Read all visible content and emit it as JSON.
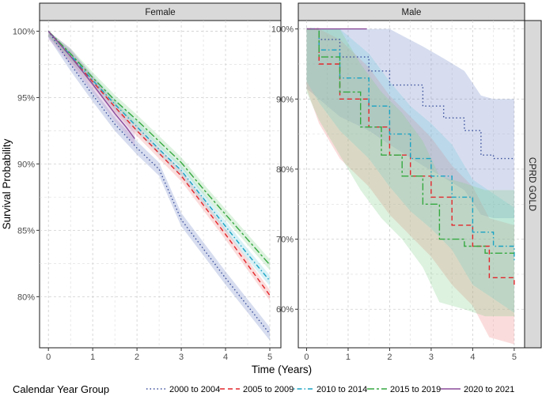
{
  "chart_data": {
    "type": "line",
    "subtype": "kaplan-meier survival curves with confidence bands",
    "xlabel": "Time (Years)",
    "ylabel": "Survival Probability",
    "row_strip": "CPRD GOLD",
    "legend_title": "Calendar Year Group",
    "legend_position": "bottom",
    "grid": true,
    "series_styles": [
      {
        "name": "2000 to 2004",
        "color": "#3b4f9c",
        "band": "#6f86c6",
        "dash": "dotted"
      },
      {
        "name": "2005 to 2009",
        "color": "#e3262b",
        "band": "#f08383",
        "dash": "dashed"
      },
      {
        "name": "2010 to 2014",
        "color": "#1aa3c4",
        "band": "#6fcbe0",
        "dash": "dotdash"
      },
      {
        "name": "2015 to 2019",
        "color": "#35a940",
        "band": "#85d08c",
        "dash": "longdash"
      },
      {
        "name": "2020 to 2021",
        "color": "#8a4a9a",
        "band": "#b98cc6",
        "dash": "solid"
      }
    ],
    "panels": [
      {
        "title": "Female",
        "xlim": [
          -0.2,
          5.25
        ],
        "ylim": [
          0.7615,
          1.008
        ],
        "x_ticks": [
          0,
          1,
          2,
          3,
          4,
          5
        ],
        "x_tick_labels": [
          "0",
          "1",
          "2",
          "3",
          "4",
          "5"
        ],
        "y_ticks": [
          0.8,
          0.85,
          0.9,
          0.95,
          1.0
        ],
        "y_tick_labels": [
          "80%",
          "85%",
          "90%",
          "95%",
          "100%"
        ],
        "series": [
          {
            "name": "2000 to 2004",
            "x": [
              0,
              0.5,
              1,
              1.5,
              2,
              2.5,
              3,
              3.5,
              4,
              4.5,
              5
            ],
            "y": [
              1.0,
              0.975,
              0.952,
              0.93,
              0.912,
              0.896,
              0.858,
              0.836,
              0.814,
              0.793,
              0.772
            ],
            "ci": 0.005
          },
          {
            "name": "2005 to 2009",
            "x": [
              0,
              0.5,
              1,
              1.5,
              2,
              2.5,
              3,
              3.5,
              4,
              4.5,
              5
            ],
            "y": [
              1.0,
              0.981,
              0.962,
              0.943,
              0.925,
              0.908,
              0.891,
              0.869,
              0.847,
              0.824,
              0.801
            ],
            "ci": 0.004
          },
          {
            "name": "2010 to 2014",
            "x": [
              0,
              0.5,
              1,
              1.5,
              2,
              2.5,
              3,
              3.5,
              4,
              4.5,
              5
            ],
            "y": [
              1.0,
              0.982,
              0.963,
              0.945,
              0.928,
              0.911,
              0.895,
              0.874,
              0.853,
              0.832,
              0.812
            ],
            "ci": 0.004
          },
          {
            "name": "2015 to 2019",
            "x": [
              0,
              0.5,
              1,
              1.5,
              2,
              2.5,
              3,
              3.5,
              4,
              4.5,
              5
            ],
            "y": [
              1.0,
              0.983,
              0.965,
              0.948,
              0.933,
              0.917,
              0.901,
              0.881,
              0.862,
              0.843,
              0.824
            ],
            "ci": 0.004
          },
          {
            "name": "2020 to 2021",
            "x": [
              0,
              0.5,
              1,
              1.5,
              1.75,
              1.95
            ],
            "y": [
              1.0,
              0.981,
              0.96,
              0.938,
              0.928,
              0.919
            ],
            "ci": 0.006
          }
        ]
      },
      {
        "title": "Male",
        "xlim": [
          -0.2,
          5.25
        ],
        "ylim": [
          0.545,
          1.012
        ],
        "x_ticks": [
          0,
          1,
          2,
          3,
          4,
          5
        ],
        "x_tick_labels": [
          "0",
          "1",
          "2",
          "3",
          "4",
          "5"
        ],
        "y_ticks": [
          0.6,
          0.7,
          0.8,
          0.9,
          1.0
        ],
        "y_tick_labels": [
          "60%",
          "70%",
          "80%",
          "90%",
          "100%"
        ],
        "series": [
          {
            "name": "2000 to 2004",
            "x": [
              0,
              0.3,
              0.8,
              1.5,
              2.0,
              2.8,
              3.3,
              3.8,
              4.2,
              4.5,
              5
            ],
            "y": [
              1.0,
              0.985,
              0.96,
              0.94,
              0.92,
              0.89,
              0.873,
              0.855,
              0.82,
              0.815,
              0.815
            ],
            "ci": 0.085
          },
          {
            "name": "2005 to 2009",
            "x": [
              0,
              0.3,
              0.8,
              1.5,
              2.0,
              2.5,
              3.0,
              3.5,
              4.0,
              4.4,
              5
            ],
            "y": [
              1.0,
              0.95,
              0.9,
              0.86,
              0.82,
              0.79,
              0.76,
              0.72,
              0.69,
              0.645,
              0.635
            ],
            "ci": 0.085
          },
          {
            "name": "2010 to 2014",
            "x": [
              0,
              0.3,
              0.8,
              1.5,
              2.0,
              2.5,
              3.0,
              3.5,
              4.0,
              4.5,
              5
            ],
            "y": [
              1.0,
              0.97,
              0.93,
              0.89,
              0.85,
              0.815,
              0.79,
              0.76,
              0.71,
              0.69,
              0.67
            ],
            "ci": 0.075
          },
          {
            "name": "2015 to 2019",
            "x": [
              0,
              0.3,
              0.8,
              1.3,
              1.8,
              2.3,
              2.8,
              3.2,
              3.8,
              4.3,
              5
            ],
            "y": [
              1.0,
              0.96,
              0.91,
              0.86,
              0.82,
              0.79,
              0.75,
              0.7,
              0.69,
              0.68,
              0.68
            ],
            "ci": 0.09
          },
          {
            "name": "2020 to 2021",
            "x": [
              0,
              1.45
            ],
            "y": [
              1.0,
              1.0
            ],
            "ci": 0.0
          }
        ]
      }
    ]
  }
}
